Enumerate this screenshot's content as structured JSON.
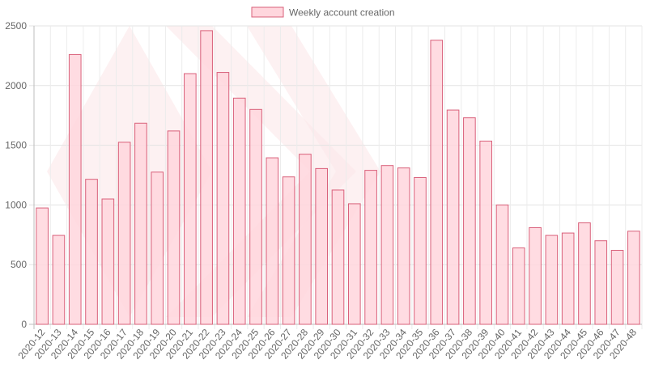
{
  "chart_data": {
    "type": "bar",
    "title": "",
    "xlabel": "",
    "ylabel": "",
    "ylim": [
      0,
      2500
    ],
    "yticks": [
      0,
      500,
      1000,
      1500,
      2000,
      2500
    ],
    "grid": true,
    "legend_position": "top-center",
    "series": [
      {
        "name": "Weekly account creation",
        "fill_color": "#ffd6dd",
        "stroke_color": "#d9607a",
        "values": [
          975,
          745,
          2260,
          1215,
          1050,
          1525,
          1685,
          1275,
          1620,
          2100,
          2460,
          2110,
          1895,
          1800,
          1395,
          1235,
          1425,
          1305,
          1125,
          1010,
          1290,
          1330,
          1310,
          1230,
          2380,
          1795,
          1730,
          1535,
          1000,
          640,
          810,
          745,
          765,
          850,
          700,
          620,
          780
        ]
      }
    ],
    "categories": [
      "2020-12",
      "2020-13",
      "2020-14",
      "2020-15",
      "2020-16",
      "2020-17",
      "2020-18",
      "2020-19",
      "2020-20",
      "2020-21",
      "2020-22",
      "2020-23",
      "2020-24",
      "2020-25",
      "2020-26",
      "2020-27",
      "2020-28",
      "2020-29",
      "2020-30",
      "2020-31",
      "2020-32",
      "2020-33",
      "2020-34",
      "2020-35",
      "2020-36",
      "2020-37",
      "2020-38",
      "2020-39",
      "2020-40",
      "2020-41",
      "2020-42",
      "2020-43",
      "2020-44",
      "2020-45",
      "2020-46",
      "2020-47",
      "2020-48"
    ]
  }
}
